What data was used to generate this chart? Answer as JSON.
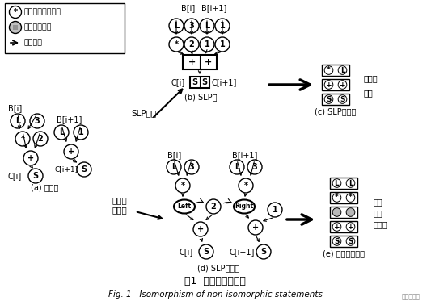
{
  "bg": "#ffffff",
  "title_cn": "图1  同构化异构语句",
  "title_en": "Fig. 1   Isomorphism of non-isomorphic statements",
  "label_a": "(a) 依赖图",
  "label_b": "(b) SLP图",
  "label_c": "(c) SLP指令组",
  "label_d": "(d) SLP补充图",
  "label_e": "(e) 补充图指令组",
  "slp_alg": "SLP算法",
  "iso_alg_l1": "同结构",
  "iso_alg_l2": "化算法",
  "non_iso_l1": "非同构",
  "non_iso_l2": "指令",
  "iso_after_l1": "同构",
  "iso_after_l2": "化后",
  "iso_after_l3": "的指令",
  "leg1": "指令节点或者常量",
  "leg2": "选择指令节点",
  "leg3": "数据流边",
  "watermark": "电子发烧友"
}
